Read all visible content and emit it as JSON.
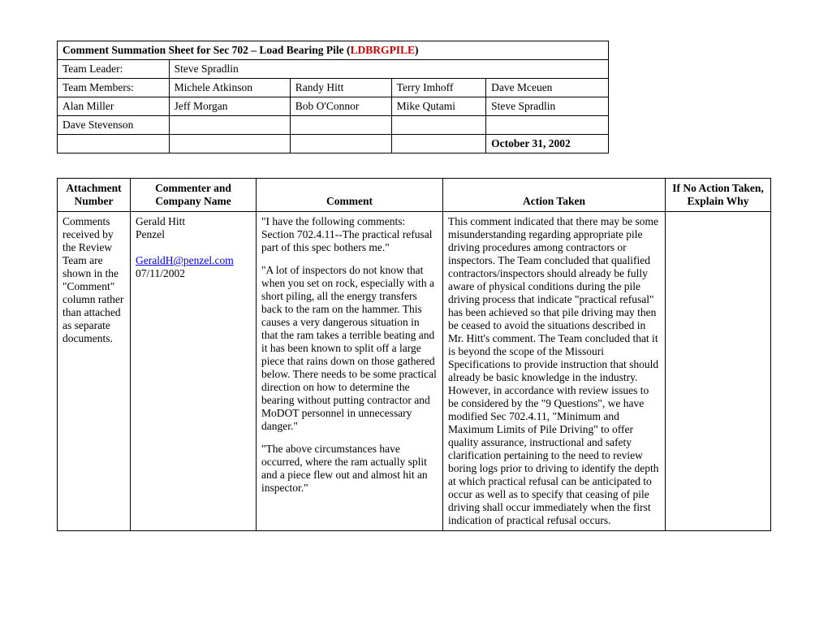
{
  "header": {
    "title_prefix": "Comment Summation Sheet for Sec 702 – Load Bearing Pile (",
    "title_code": "LDBRGPILE",
    "title_suffix": ")",
    "team_leader_label": "Team Leader:",
    "team_leader_value": "Steve Spradlin",
    "team_members_label": "Team Members:",
    "members": {
      "r1c1": "Michele Atkinson",
      "r1c2": "Randy Hitt",
      "r1c3": "Terry Imhoff",
      "r1c4": "Dave Mceuen",
      "r2c0": "Alan Miller",
      "r2c1": "Jeff Morgan",
      "r2c2": "Bob O'Connor",
      "r2c3": "Mike Qutami",
      "r2c4": "Steve Spradlin",
      "r3c0": "Dave Stevenson"
    },
    "date": "October 31, 2002"
  },
  "mainTable": {
    "headers": {
      "attachment": "Attachment Number",
      "commenter": "Commenter and Company Name",
      "comment": "Comment",
      "action": "Action Taken",
      "noaction": "If No Action Taken, Explain Why"
    },
    "row": {
      "attachment": "Comments received by the Review Team are shown in the \"Comment\" column rather than attached as separate documents.",
      "commenter_name": "Gerald Hitt",
      "commenter_company": "Penzel",
      "commenter_email": "GeraldH@penzel.com",
      "commenter_date": "07/11/2002",
      "comment_p1": "\"I have the following comments: Section 702.4.11--The practical refusal part of this spec bothers me.\"",
      "comment_p2": "\"A lot of inspectors do not know that when you set on rock, especially with a short piling, all the energy transfers back to the ram on the hammer.  This causes a very dangerous situation in that the ram takes a terrible beating and it has been known to split off a large piece that rains down on those gathered below.  There needs to be some practical direction on how to determine the bearing without putting contractor and MoDOT personnel in unnecessary danger.\"",
      "comment_p3": "\"The above circumstances have occurred, where the ram actually split and a piece flew out and almost hit an inspector.\"",
      "action": "This comment indicated that there may be some misunderstanding regarding appropriate pile driving procedures among contractors or inspectors.  The Team concluded that qualified contractors/inspectors should already be fully aware of physical conditions during the pile driving process that indicate \"practical refusal\" has been achieved so that pile driving may then be ceased to avoid the situations described in Mr. Hitt's comment.  The Team concluded that it is beyond the scope of the Missouri Specifications to provide instruction that should already be basic knowledge in the industry.  However, in accordance with review issues to be considered by the \"9 Questions\", we have modified Sec 702.4.11, \"Minimum and Maximum Limits of Pile Driving\" to offer quality assurance, instructional and safety clarification pertaining to the need to review boring logs prior to driving to identify the depth at which practical refusal can be anticipated to occur as well as to specify that ceasing of pile driving shall occur immediately when the first indication of practical refusal occurs.",
      "noaction": ""
    }
  }
}
